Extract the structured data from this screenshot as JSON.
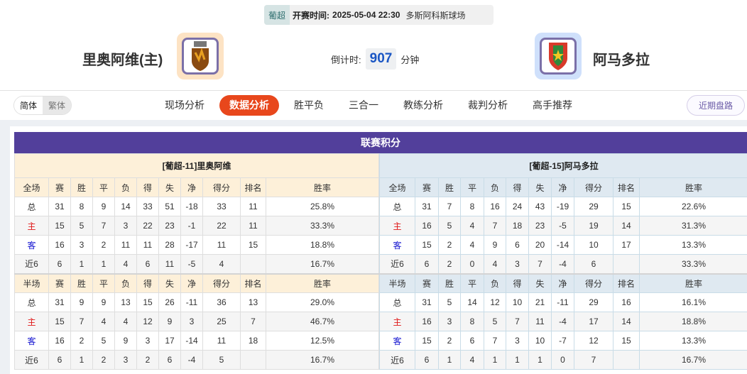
{
  "match": {
    "league": "葡超",
    "start_label": "开赛时间:",
    "start_time": "2025-05-04 22:30",
    "venue": "多斯阿科斯球场",
    "home_team": "里奥阿维(主)",
    "away_team": "阿马多拉",
    "countdown_label": "倒计时:",
    "countdown_value": "907",
    "countdown_unit": "分钟"
  },
  "lang": {
    "simplified": "简体",
    "traditional": "繁体"
  },
  "tabs": [
    "现场分析",
    "数据分析",
    "胜平负",
    "三合一",
    "教练分析",
    "裁判分析",
    "高手推荐"
  ],
  "active_tab": "数据分析",
  "recent_button": "近期盘路",
  "section_title": "联赛积分",
  "headers_full": [
    "全场",
    "赛",
    "胜",
    "平",
    "负",
    "得",
    "失",
    "净",
    "得分",
    "排名",
    "胜率"
  ],
  "headers_half": [
    "半场",
    "赛",
    "胜",
    "平",
    "负",
    "得",
    "失",
    "净",
    "得分",
    "排名",
    "胜率"
  ],
  "home": {
    "title": "[葡超-11]里奥阿维",
    "full": [
      [
        "总",
        "31",
        "8",
        "9",
        "14",
        "33",
        "51",
        "-18",
        "33",
        "11",
        "25.8%"
      ],
      [
        "主",
        "15",
        "5",
        "7",
        "3",
        "22",
        "23",
        "-1",
        "22",
        "11",
        "33.3%"
      ],
      [
        "客",
        "16",
        "3",
        "2",
        "11",
        "11",
        "28",
        "-17",
        "11",
        "15",
        "18.8%"
      ],
      [
        "近6",
        "6",
        "1",
        "1",
        "4",
        "6",
        "11",
        "-5",
        "4",
        "",
        "16.7%"
      ]
    ],
    "half": [
      [
        "总",
        "31",
        "9",
        "9",
        "13",
        "15",
        "26",
        "-11",
        "36",
        "13",
        "29.0%"
      ],
      [
        "主",
        "15",
        "7",
        "4",
        "4",
        "12",
        "9",
        "3",
        "25",
        "7",
        "46.7%"
      ],
      [
        "客",
        "16",
        "2",
        "5",
        "9",
        "3",
        "17",
        "-14",
        "11",
        "18",
        "12.5%"
      ],
      [
        "近6",
        "6",
        "1",
        "2",
        "3",
        "2",
        "6",
        "-4",
        "5",
        "",
        "16.7%"
      ]
    ]
  },
  "away": {
    "title": "[葡超-15]阿马多拉",
    "full": [
      [
        "总",
        "31",
        "7",
        "8",
        "16",
        "24",
        "43",
        "-19",
        "29",
        "15",
        "22.6%"
      ],
      [
        "主",
        "16",
        "5",
        "4",
        "7",
        "18",
        "23",
        "-5",
        "19",
        "14",
        "31.3%"
      ],
      [
        "客",
        "15",
        "2",
        "4",
        "9",
        "6",
        "20",
        "-14",
        "10",
        "17",
        "13.3%"
      ],
      [
        "近6",
        "6",
        "2",
        "0",
        "4",
        "3",
        "7",
        "-4",
        "6",
        "",
        "33.3%"
      ]
    ],
    "half": [
      [
        "总",
        "31",
        "5",
        "14",
        "12",
        "10",
        "21",
        "-11",
        "29",
        "16",
        "16.1%"
      ],
      [
        "主",
        "16",
        "3",
        "8",
        "5",
        "7",
        "11",
        "-4",
        "17",
        "14",
        "18.8%"
      ],
      [
        "客",
        "15",
        "2",
        "6",
        "7",
        "3",
        "10",
        "-7",
        "12",
        "15",
        "13.3%"
      ],
      [
        "近6",
        "6",
        "1",
        "4",
        "1",
        "1",
        "1",
        "0",
        "7",
        "",
        "16.7%"
      ]
    ]
  },
  "colors": {
    "title_bar": "#523f9b",
    "active_tab": "#e8471c",
    "home_label": "#e01818",
    "away_label": "#1414d0",
    "countdown": "#1a56c4"
  }
}
